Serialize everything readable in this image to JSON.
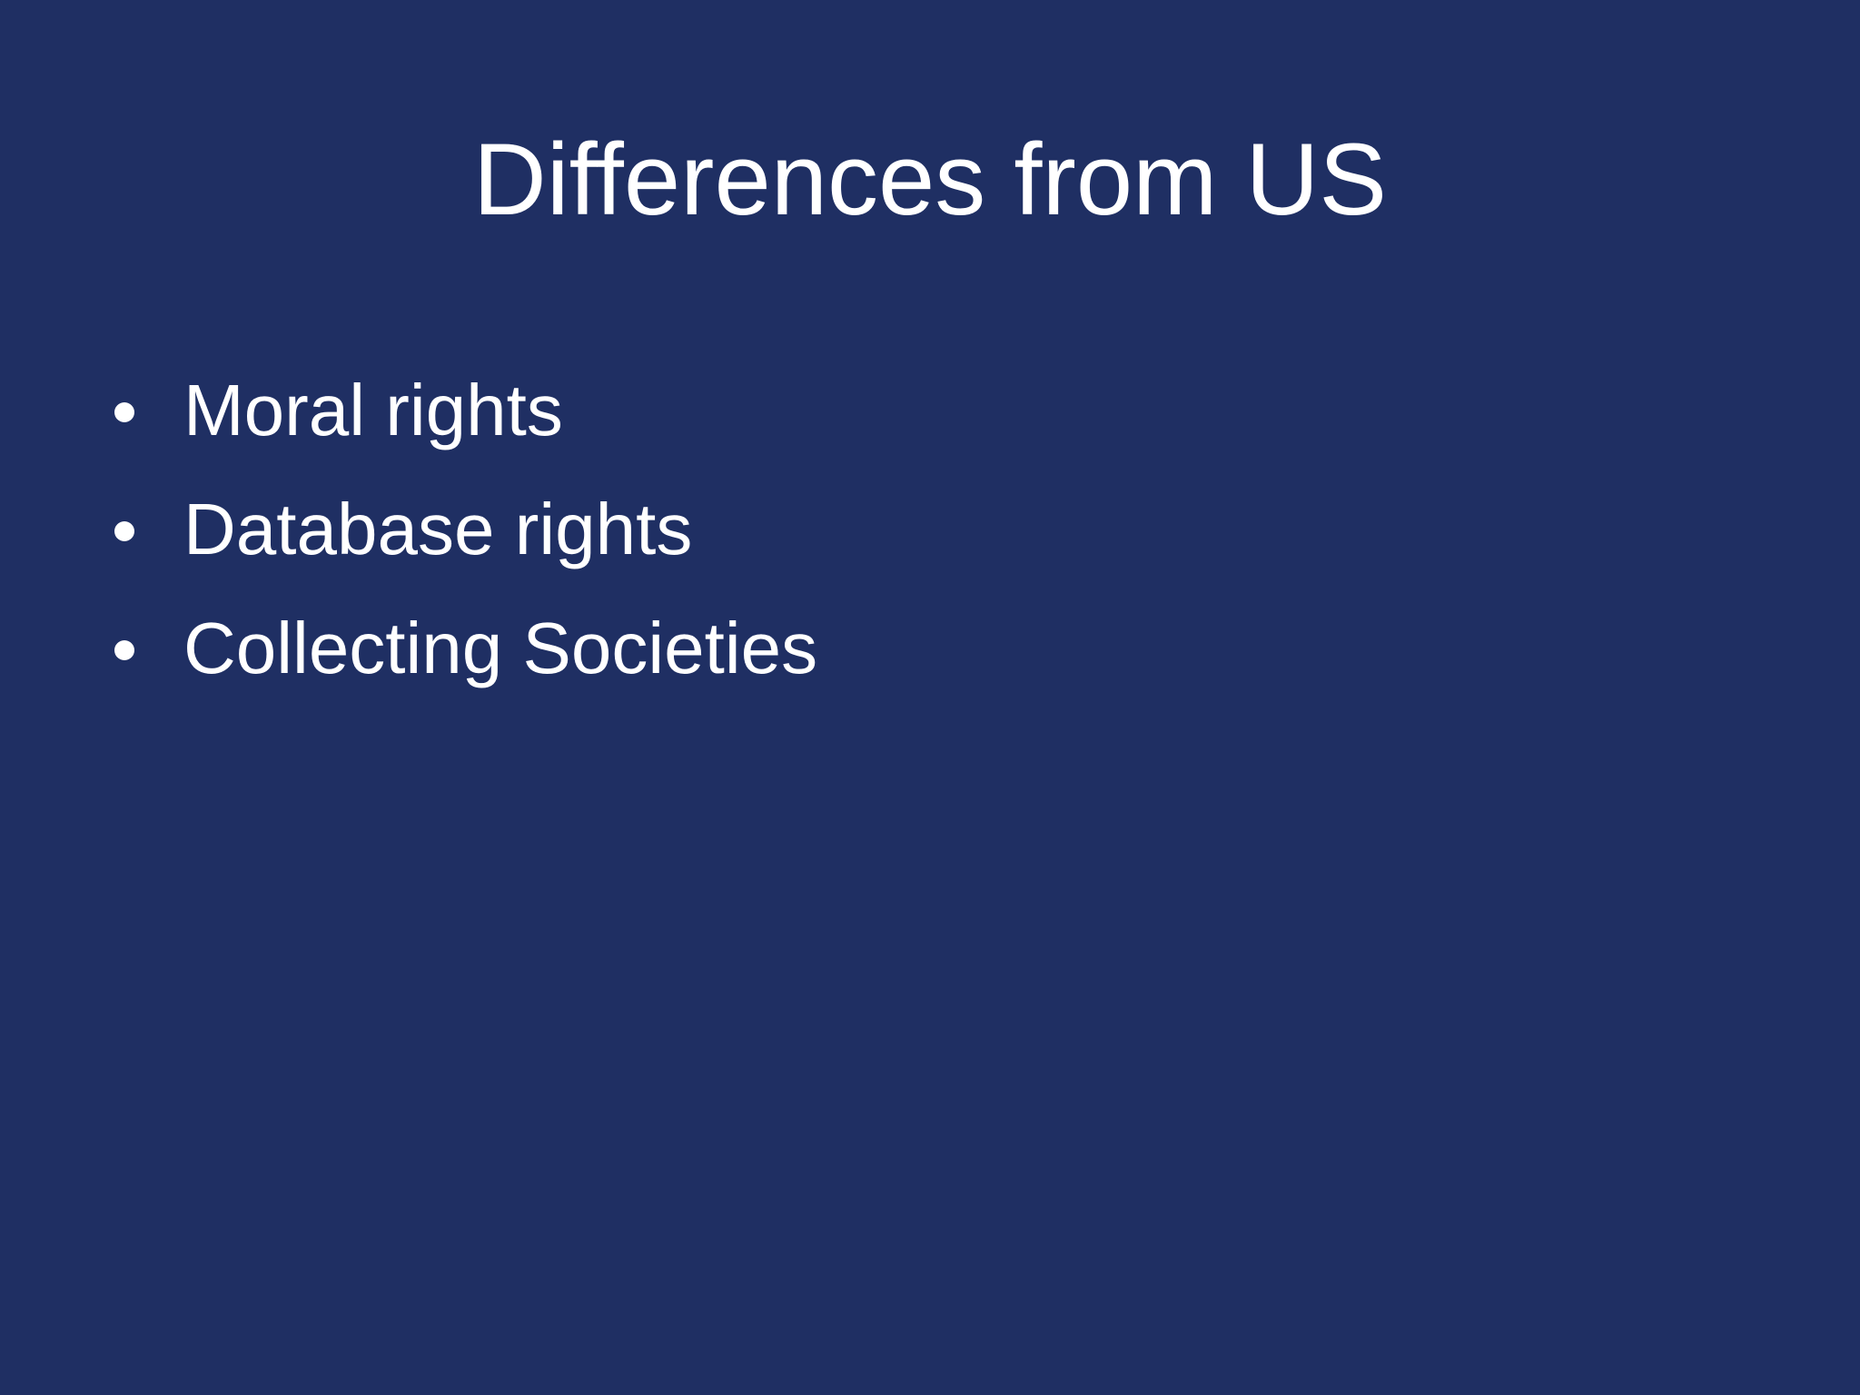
{
  "slide": {
    "title": "Differences from US",
    "bullets": [
      "Moral rights",
      "Database rights",
      "Collecting Societies"
    ],
    "colors": {
      "background": "#1f2f63",
      "text": "#ffffff"
    }
  }
}
